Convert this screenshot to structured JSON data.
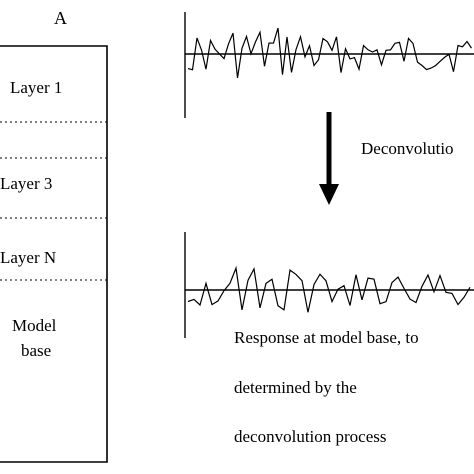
{
  "column": {
    "label": "A",
    "layers": [
      "Layer 1",
      "Layer 3",
      "Layer N"
    ],
    "base_line1": "Model",
    "base_line2": "base"
  },
  "arrow_label": "Deconvolutio",
  "response_text": {
    "line1": "Response at model base, to",
    "line2": "determined by the",
    "line3": "deconvolution process"
  }
}
